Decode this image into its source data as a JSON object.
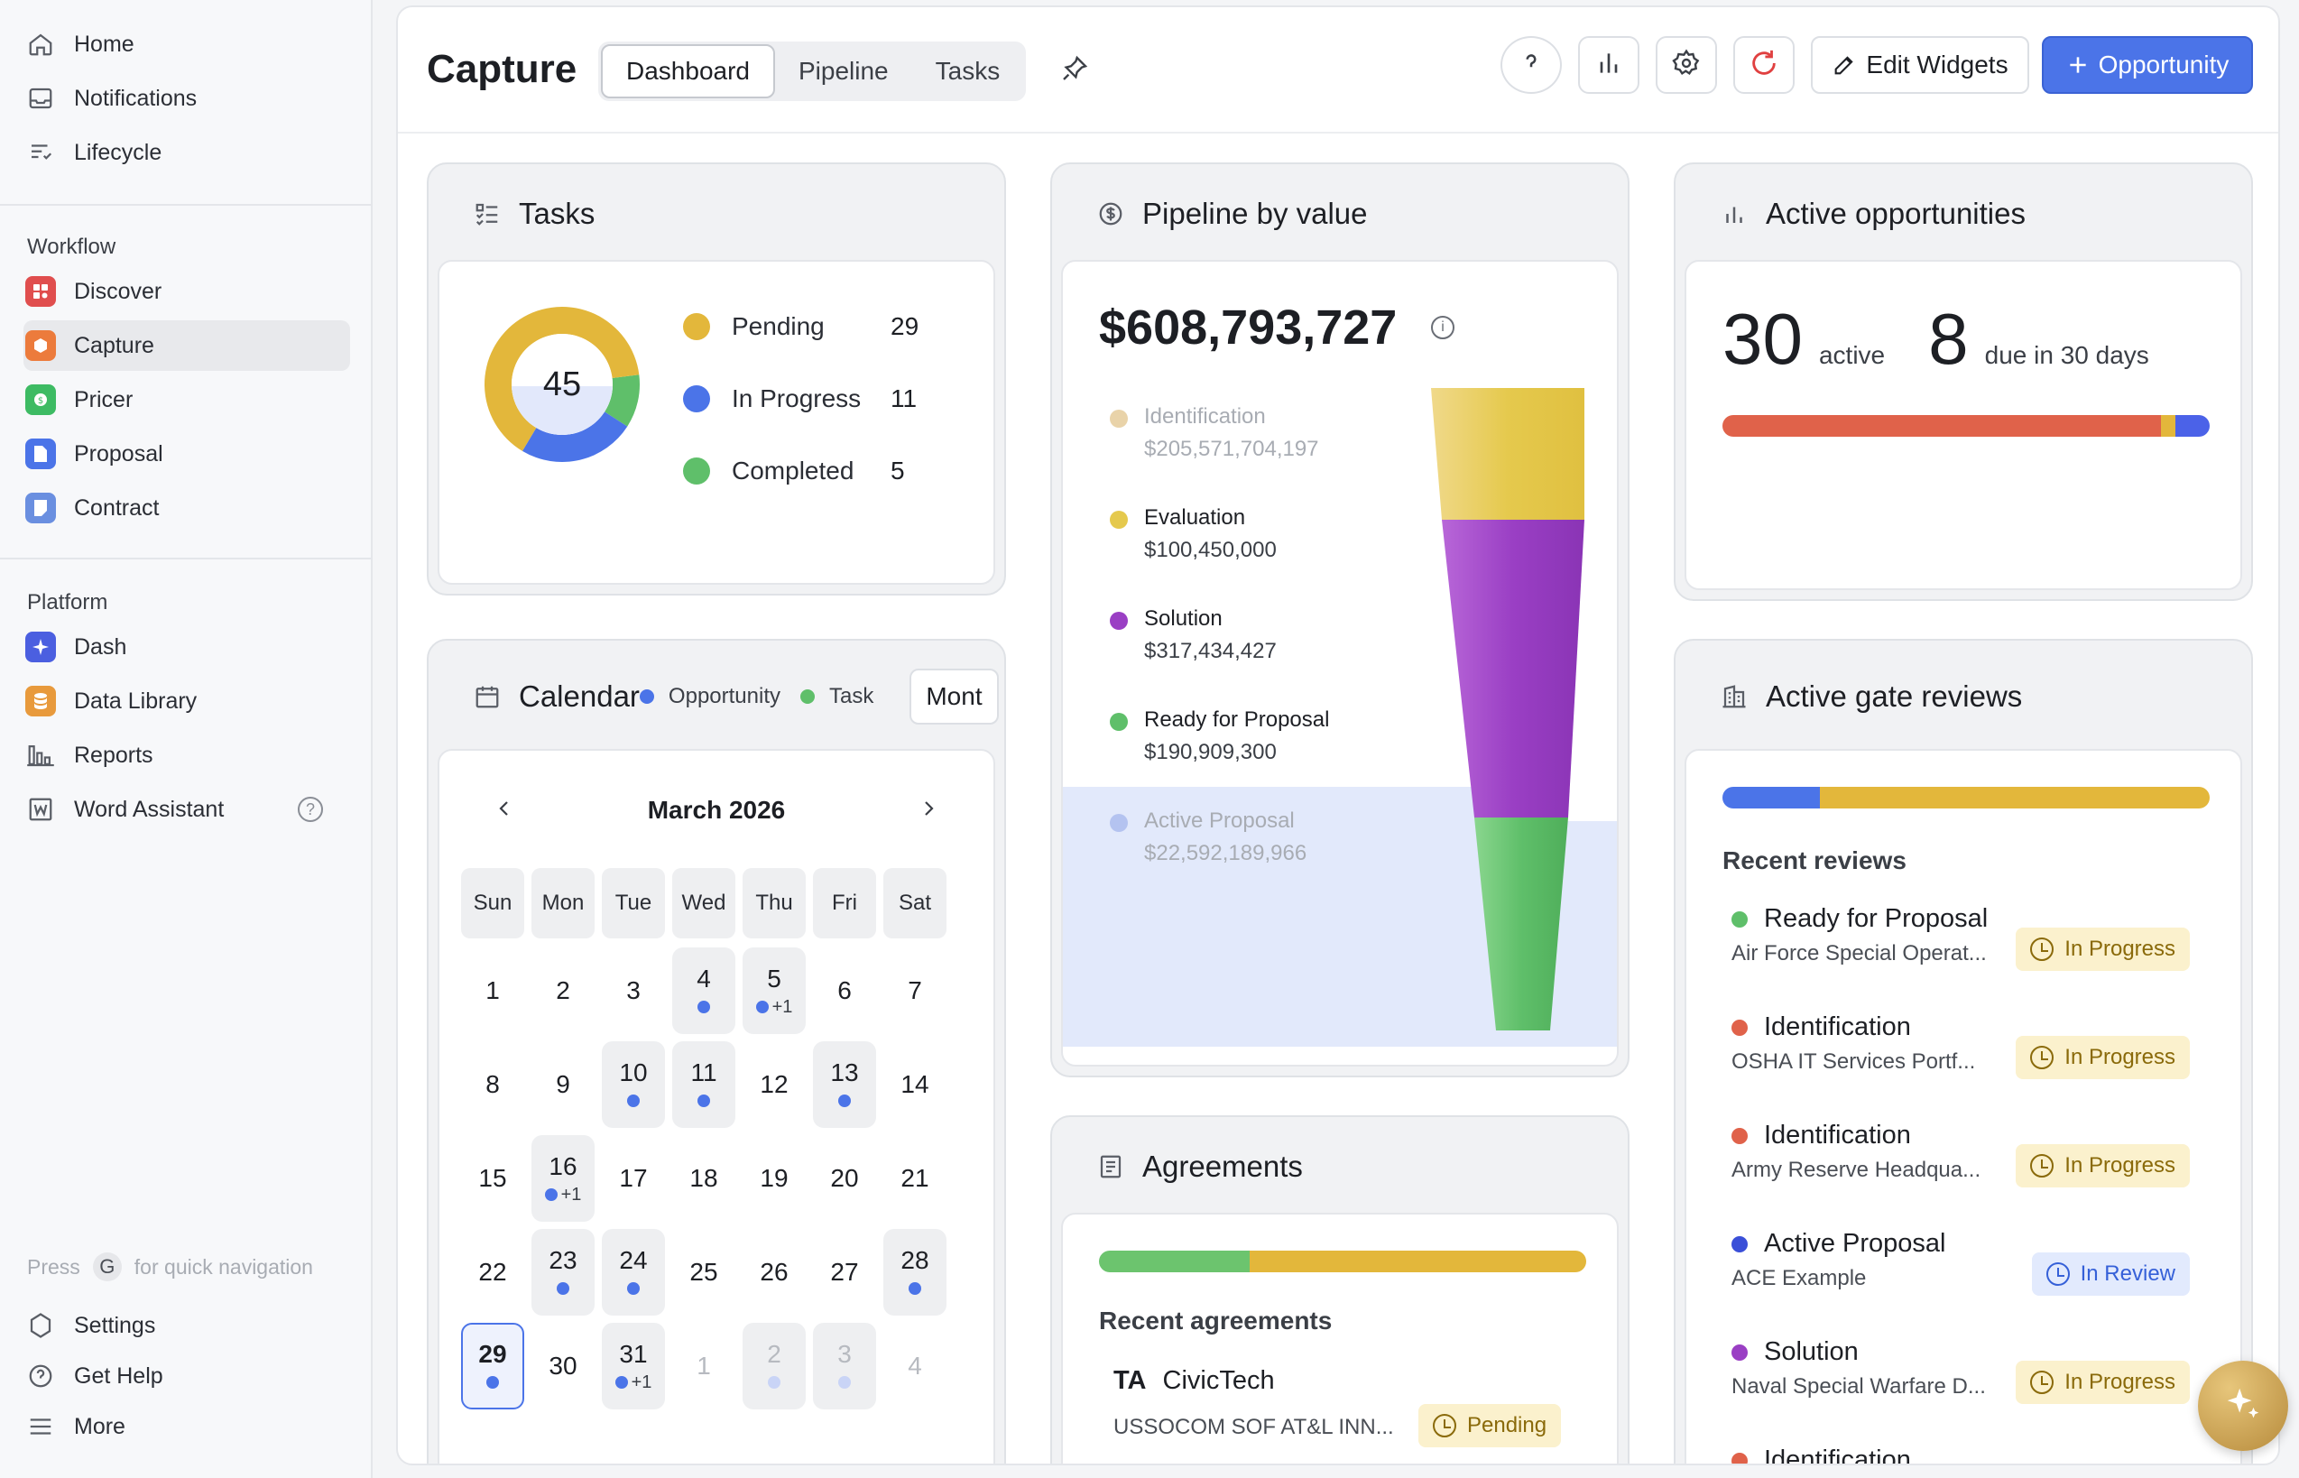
{
  "sidebar": {
    "top": [
      {
        "label": "Home",
        "icon": "home-icon"
      },
      {
        "label": "Notifications",
        "icon": "inbox-icon"
      },
      {
        "label": "Lifecycle",
        "icon": "lifecycle-icon"
      }
    ],
    "workflow_label": "Workflow",
    "workflow": [
      {
        "label": "Discover",
        "color": "#e04e4e"
      },
      {
        "label": "Capture",
        "color": "#ec7b3c"
      },
      {
        "label": "Pricer",
        "color": "#3dbb63"
      },
      {
        "label": "Proposal",
        "color": "#4b74e8"
      },
      {
        "label": "Contract",
        "color": "#6a8fe0"
      }
    ],
    "platform_label": "Platform",
    "platform": [
      {
        "label": "Dash",
        "color": "#4b5fe0"
      },
      {
        "label": "Data Library",
        "color": "#e89a3c"
      },
      {
        "label": "Reports",
        "icon": "chart-icon"
      },
      {
        "label": "Word Assistant",
        "icon": "word-icon"
      }
    ],
    "hint_press": "Press",
    "hint_key": "G",
    "hint_text": "for quick navigation",
    "bottom": [
      {
        "label": "Settings"
      },
      {
        "label": "Get Help"
      },
      {
        "label": "More"
      }
    ]
  },
  "header": {
    "title": "Capture",
    "tabs": [
      "Dashboard",
      "Pipeline",
      "Tasks"
    ],
    "active_tab": "Dashboard",
    "edit_widgets": "Edit Widgets",
    "opportunity": "Opportunity"
  },
  "tasks": {
    "title": "Tasks",
    "total": "45",
    "items": [
      {
        "label": "Pending",
        "count": "29",
        "color": "#e3b73b"
      },
      {
        "label": "In Progress",
        "count": "11",
        "color": "#4b74e8"
      },
      {
        "label": "Completed",
        "count": "5",
        "color": "#5fbf6a"
      }
    ]
  },
  "pipeline": {
    "title": "Pipeline by value",
    "total": "$608,793,727",
    "stages": [
      {
        "name": "Identification",
        "value": "$205,571,704,197",
        "color": "#e9d3a9",
        "faded": true
      },
      {
        "name": "Evaluation",
        "value": "$100,450,000",
        "color": "#e5c94d",
        "faded": false
      },
      {
        "name": "Solution",
        "value": "$317,434,427",
        "color": "#9a3fc4",
        "faded": false
      },
      {
        "name": "Ready for Proposal",
        "value": "$190,909,300",
        "color": "#5fbf6a",
        "faded": false
      },
      {
        "name": "Active Proposal",
        "value": "$22,592,189,966",
        "color": "#b4c3f0",
        "faded": true
      }
    ]
  },
  "active_opps": {
    "title": "Active opportunities",
    "active_count": "30",
    "active_label": "active",
    "due_count": "8",
    "due_label": "due in 30 days",
    "bar": [
      {
        "pct": 90,
        "color": "#e0624a"
      },
      {
        "pct": 3,
        "color": "#e3b73b"
      },
      {
        "pct": 7,
        "color": "#4b62e8"
      }
    ]
  },
  "calendar": {
    "title": "Calendar",
    "legend_opportunity": "Opportunity",
    "legend_task": "Task",
    "view_select": "Mont",
    "month": "March 2026",
    "dow": [
      "Sun",
      "Mon",
      "Tue",
      "Wed",
      "Thu",
      "Fri",
      "Sat"
    ],
    "weeks": [
      [
        {
          "d": "1"
        },
        {
          "d": "2"
        },
        {
          "d": "3"
        },
        {
          "d": "4",
          "ev": 1
        },
        {
          "d": "5",
          "ev": 1,
          "more": "+1"
        },
        {
          "d": "6"
        },
        {
          "d": "7"
        }
      ],
      [
        {
          "d": "8"
        },
        {
          "d": "9"
        },
        {
          "d": "10",
          "ev": 1
        },
        {
          "d": "11",
          "ev": 1
        },
        {
          "d": "12"
        },
        {
          "d": "13",
          "ev": 1
        },
        {
          "d": "14"
        }
      ],
      [
        {
          "d": "15"
        },
        {
          "d": "16",
          "ev": 1,
          "more": "+1"
        },
        {
          "d": "17"
        },
        {
          "d": "18"
        },
        {
          "d": "19"
        },
        {
          "d": "20"
        },
        {
          "d": "21"
        }
      ],
      [
        {
          "d": "22"
        },
        {
          "d": "23",
          "ev": 1
        },
        {
          "d": "24",
          "ev": 1
        },
        {
          "d": "25"
        },
        {
          "d": "26"
        },
        {
          "d": "27"
        },
        {
          "d": "28",
          "ev": 1
        }
      ],
      [
        {
          "d": "29",
          "ev": 1,
          "sel": 1
        },
        {
          "d": "30"
        },
        {
          "d": "31",
          "ev": 1,
          "more": "+1"
        },
        {
          "d": "1",
          "muted": 1
        },
        {
          "d": "2",
          "muted": 1,
          "ev": 1,
          "faint": 1
        },
        {
          "d": "3",
          "muted": 1,
          "ev": 1,
          "faint": 1
        },
        {
          "d": "4",
          "muted": 1
        }
      ]
    ]
  },
  "agreements": {
    "title": "Agreements",
    "bar": [
      {
        "pct": 31,
        "color": "#6cc46e"
      },
      {
        "pct": 69,
        "color": "#e3b73b"
      }
    ],
    "recent_label": "Recent agreements",
    "items": [
      {
        "initials": "TA",
        "name": "CivicTech",
        "sub": "USSOCOM SOF AT&L INN...",
        "status": "Pending"
      }
    ]
  },
  "gate_reviews": {
    "title": "Active gate reviews",
    "bar": [
      {
        "pct": 20,
        "color": "#4b74e8"
      },
      {
        "pct": 80,
        "color": "#e3b73b"
      }
    ],
    "recent_label": "Recent reviews",
    "items": [
      {
        "stage": "Ready for Proposal",
        "color": "#5fbf6a",
        "sub": "Air Force Special Operat...",
        "status": "In Progress",
        "kind": "prog"
      },
      {
        "stage": "Identification",
        "color": "#e0624a",
        "sub": "OSHA IT Services Portf...",
        "status": "In Progress",
        "kind": "prog"
      },
      {
        "stage": "Identification",
        "color": "#e0624a",
        "sub": "Army Reserve Headqua...",
        "status": "In Progress",
        "kind": "prog"
      },
      {
        "stage": "Active Proposal",
        "color": "#3a4fd8",
        "sub": "ACE Example",
        "status": "In Review",
        "kind": "rev"
      },
      {
        "stage": "Solution",
        "color": "#9a3fc4",
        "sub": "Naval Special Warfare D...",
        "status": "In Progress",
        "kind": "prog"
      },
      {
        "stage": "Identification",
        "color": "#e0624a",
        "sub": "",
        "status": "",
        "kind": "prog"
      }
    ]
  }
}
